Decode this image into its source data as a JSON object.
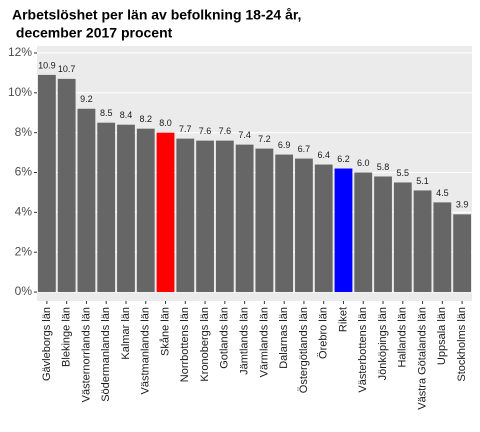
{
  "chart_data": {
    "type": "bar",
    "title": [
      "Arbetslöshet per län av befolkning 18-24 år,",
      " december 2017 procent"
    ],
    "categories": [
      "Gävleborgs län",
      "Blekinge län",
      "Västernorrlands län",
      "Södermanlands län",
      "Kalmar län",
      "Västmanlands län",
      "Skåne län",
      "Norrbottens län",
      "Kronobergs län",
      "Gotlands län",
      "Jämtlands län",
      "Värmlands län",
      "Dalarnas län",
      "Östergötlands län",
      "Örebro län",
      "Riket",
      "Västerbottens län",
      "Jönköpings län",
      "Hallands län",
      "Västra Götalands län",
      "Uppsala län",
      "Stockholms län"
    ],
    "values": [
      10.9,
      10.7,
      9.2,
      8.5,
      8.4,
      8.2,
      8.0,
      7.7,
      7.6,
      7.6,
      7.4,
      7.2,
      6.9,
      6.7,
      6.4,
      6.2,
      6.0,
      5.8,
      5.5,
      5.1,
      4.5,
      3.9
    ],
    "value_labels": [
      "10.9",
      "10.7",
      "9.2",
      "8.5",
      "8.4",
      "8.2",
      "8.0",
      "7.7",
      "7.6",
      "7.6",
      "7.4",
      "7.2",
      "6.9",
      "6.7",
      "6.4",
      "6.2",
      "6.0",
      "5.8",
      "5.5",
      "5.1",
      "4.5",
      "3.9"
    ],
    "colors": [
      "#666666",
      "#666666",
      "#666666",
      "#666666",
      "#666666",
      "#666666",
      "#ff0000",
      "#666666",
      "#666666",
      "#666666",
      "#666666",
      "#666666",
      "#666666",
      "#666666",
      "#666666",
      "#0000ff",
      "#666666",
      "#666666",
      "#666666",
      "#666666",
      "#666666",
      "#666666"
    ],
    "ylim": [
      -0.45,
      12.35
    ],
    "yticks": [
      {
        "value": 0,
        "label": "0%"
      },
      {
        "value": 2,
        "label": "2%"
      },
      {
        "value": 4,
        "label": "4%"
      },
      {
        "value": 6,
        "label": "6%"
      },
      {
        "value": 8,
        "label": "8%"
      },
      {
        "value": 10,
        "label": "10%"
      },
      {
        "value": 12,
        "label": "12%"
      }
    ],
    "grid": true
  }
}
